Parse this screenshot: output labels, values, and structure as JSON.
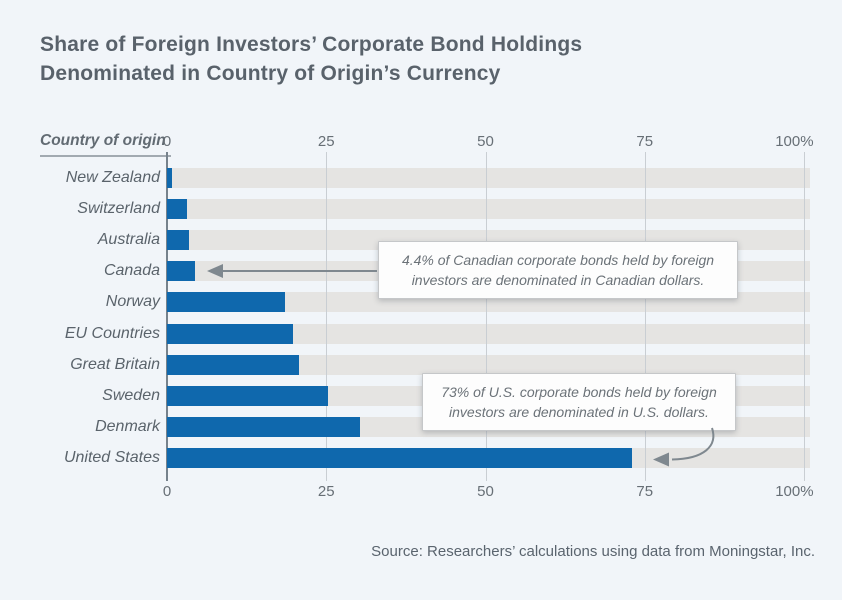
{
  "title": {
    "line1": "Share of Foreign Investors’ Corporate Bond Holdings",
    "line2": "Denominated in Country of Origin’s Currency"
  },
  "axis_header": "Country of origin",
  "chart_data": {
    "type": "bar",
    "orientation": "horizontal",
    "title": "Share of Foreign Investors’ Corporate Bond Holdings Denominated in Country of Origin’s Currency",
    "categories": [
      "New Zealand",
      "Switzerland",
      "Australia",
      "Canada",
      "Norway",
      "EU Countries",
      "Great Britain",
      "Sweden",
      "Denmark",
      "United States"
    ],
    "values": [
      0.8,
      3.1,
      3.4,
      4.4,
      18.5,
      19.8,
      20.7,
      25.3,
      30.3,
      73
    ],
    "unit": "%",
    "xlabel": "",
    "ylabel": "Country of origin",
    "xlim": [
      0,
      100
    ],
    "x_ticks": [
      {
        "label": "0",
        "value": 0
      },
      {
        "label": "25",
        "value": 25
      },
      {
        "label": "50",
        "value": 50
      },
      {
        "label": "75",
        "value": 75
      },
      {
        "label": "100%",
        "value": 100
      }
    ],
    "grid": true,
    "legend": "none"
  },
  "annotations": [
    {
      "text": "4.4% of Canadian corporate bonds held by foreign investors are denominated in Canadian dollars.",
      "target": "Canada",
      "value": 4.4
    },
    {
      "text": "73% of U.S. corporate bonds held by foreign investors are denominated in U.S. dollars.",
      "target": "United States",
      "value": 73
    }
  ],
  "source": "Source: Researchers’ calculations using data from Moningstar, Inc.",
  "colors": {
    "bar": "#0f68ad",
    "track": "#e5e4e2",
    "background": "#f1f5f9",
    "gridline": "#c9ced3",
    "zero_line": "#76828c",
    "arrow": "#7f888f",
    "text": "#59626b"
  }
}
